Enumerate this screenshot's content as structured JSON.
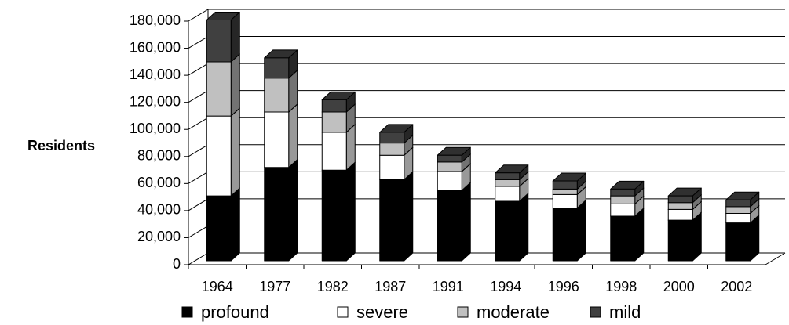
{
  "chart_data": {
    "type": "bar3d_stacked",
    "y_label": "Residents",
    "categories": [
      "1964",
      "1977",
      "1982",
      "1987",
      "1991",
      "1994",
      "1996",
      "1998",
      "2000",
      "2002"
    ],
    "series": [
      {
        "name": "profound",
        "color": "#000000",
        "values": [
          48000,
          69000,
          67000,
          60000,
          52000,
          44000,
          39000,
          33000,
          30000,
          28000
        ]
      },
      {
        "name": "severe",
        "color": "#ffffff",
        "values": [
          59000,
          41000,
          28000,
          18000,
          14000,
          11000,
          10000,
          9000,
          8000,
          7000
        ]
      },
      {
        "name": "moderate",
        "color": "#c0c0c0",
        "values": [
          40000,
          25000,
          15000,
          9000,
          7000,
          5000,
          4000,
          6000,
          5000,
          5000
        ]
      },
      {
        "name": "mild",
        "color": "#404040",
        "values": [
          31000,
          15000,
          9000,
          8000,
          5000,
          5000,
          6000,
          5000,
          5000,
          5000
        ]
      }
    ],
    "ylim": [
      0,
      180000
    ],
    "yticks": [
      0,
      {
        "value": 20000,
        "label": "20,000"
      },
      {
        "value": 40000,
        "label": "40,000"
      },
      {
        "value": 60000,
        "label": "60,000"
      },
      {
        "value": 80000,
        "label": "80,000"
      },
      {
        "value": 100000,
        "label": "100,000"
      },
      {
        "value": 120000,
        "label": "120,000"
      },
      {
        "value": 140000,
        "label": "140,000"
      },
      {
        "value": 160000,
        "label": "160,000"
      },
      {
        "value": 180000,
        "label": "180,000"
      }
    ],
    "grid": true,
    "legend": "bottom"
  }
}
